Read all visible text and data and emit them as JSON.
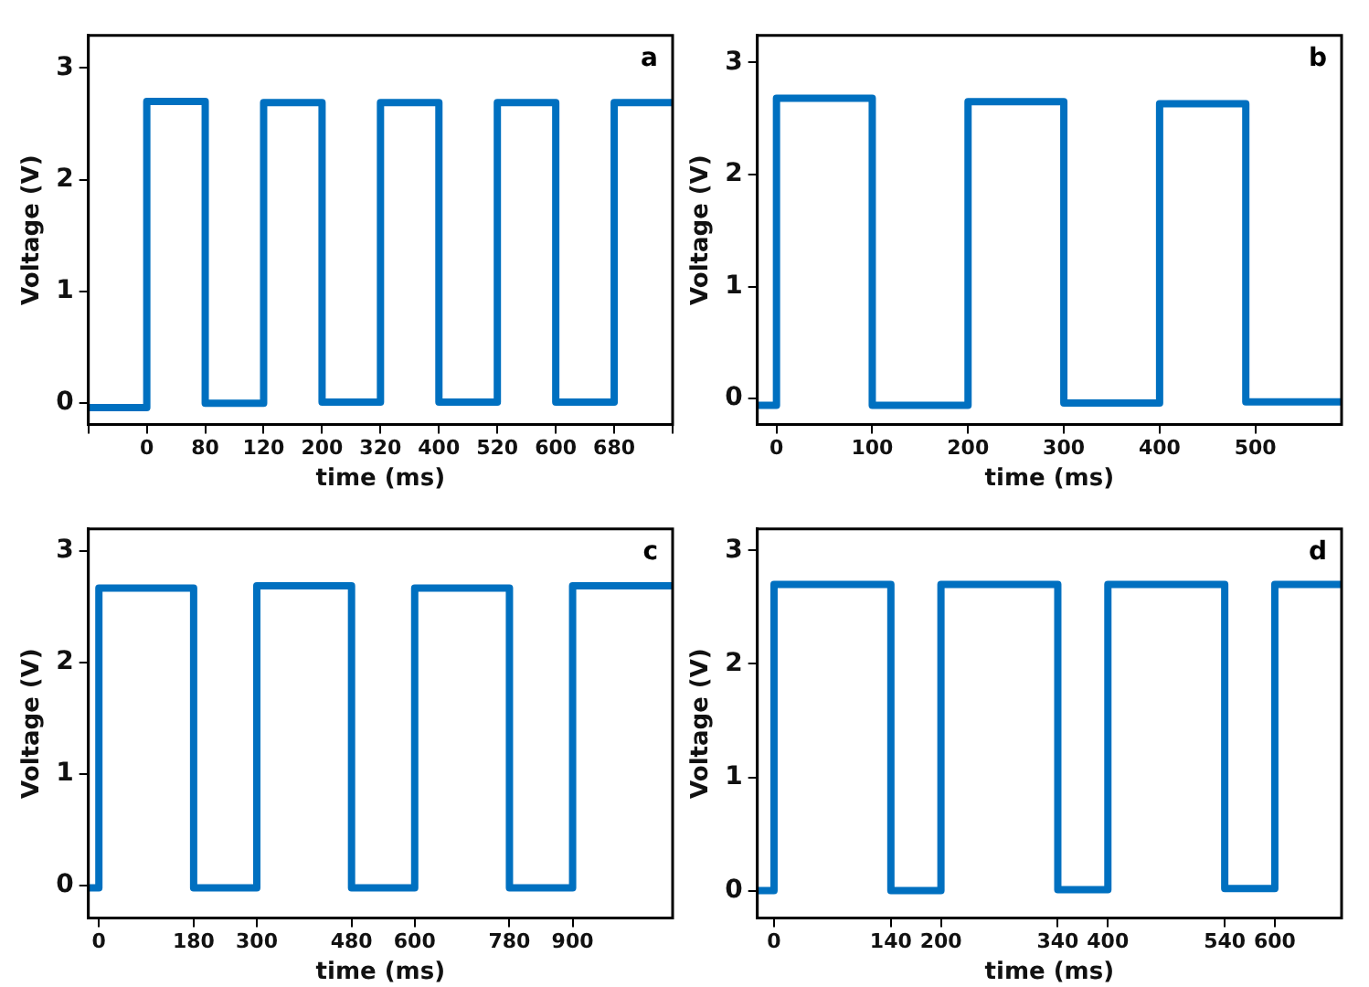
{
  "chart_data": [
    {
      "type": "step",
      "xlabel": "time (ms)",
      "ylabel": "Voltage (V)",
      "annotations": [
        "a"
      ],
      "categories": [
        null,
        "0",
        "80",
        "120",
        "200",
        "320",
        "400",
        "520",
        "600",
        "680",
        null
      ],
      "series": [
        {
          "color": "#0070c0",
          "values": [
            -0.04,
            2.7,
            0,
            2.69,
            0.01,
            2.69,
            0.01,
            2.69,
            0.01,
            2.69,
            2.69
          ]
        }
      ],
      "ylim": [
        -0.19,
        3.29
      ],
      "yticks": [
        0,
        1,
        2,
        3
      ],
      "grid": false,
      "legend": false
    },
    {
      "type": "step",
      "xlabel": "time (ms)",
      "ylabel": "Voltage (V)",
      "annotations": [
        "b"
      ],
      "x": [
        -20,
        0,
        100,
        200,
        300,
        400,
        490,
        590
      ],
      "series": [
        {
          "color": "#0070c0",
          "values": [
            -0.06,
            2.68,
            -0.06,
            2.65,
            -0.04,
            2.63,
            -0.03,
            -0.03
          ]
        }
      ],
      "xlim": [
        -20,
        590
      ],
      "xticks": [
        0,
        100,
        200,
        300,
        400,
        500
      ],
      "ylim": [
        -0.23,
        3.24
      ],
      "yticks": [
        0,
        1,
        2,
        3
      ],
      "grid": false,
      "legend": false
    },
    {
      "type": "step",
      "xlabel": "time (ms)",
      "ylabel": "Voltage (V)",
      "annotations": [
        "c"
      ],
      "x": [
        -20,
        0,
        180,
        300,
        480,
        600,
        780,
        900,
        1090
      ],
      "series": [
        {
          "color": "#0070c0",
          "values": [
            -0.02,
            2.67,
            -0.02,
            2.69,
            -0.02,
            2.67,
            -0.02,
            2.69,
            2.69
          ]
        }
      ],
      "xlim": [
        -20,
        1090
      ],
      "xticks": [
        0,
        180,
        300,
        480,
        600,
        780,
        900
      ],
      "ylim": [
        -0.29,
        3.2
      ],
      "yticks": [
        0,
        1,
        2,
        3
      ],
      "grid": false,
      "legend": false
    },
    {
      "type": "step",
      "xlabel": "time (ms)",
      "ylabel": "Voltage (V)",
      "annotations": [
        "d"
      ],
      "x": [
        -20,
        0,
        140,
        200,
        340,
        400,
        540,
        600,
        680
      ],
      "series": [
        {
          "color": "#0070c0",
          "values": [
            0,
            2.7,
            0,
            2.7,
            0.01,
            2.7,
            0.02,
            2.7,
            2.7
          ]
        }
      ],
      "xlim": [
        -20,
        680
      ],
      "xticks": [
        0,
        140,
        200,
        340,
        400,
        540,
        600
      ],
      "ylim": [
        -0.24,
        3.19
      ],
      "yticks": [
        0,
        1,
        2,
        3
      ],
      "grid": false,
      "legend": false
    }
  ]
}
